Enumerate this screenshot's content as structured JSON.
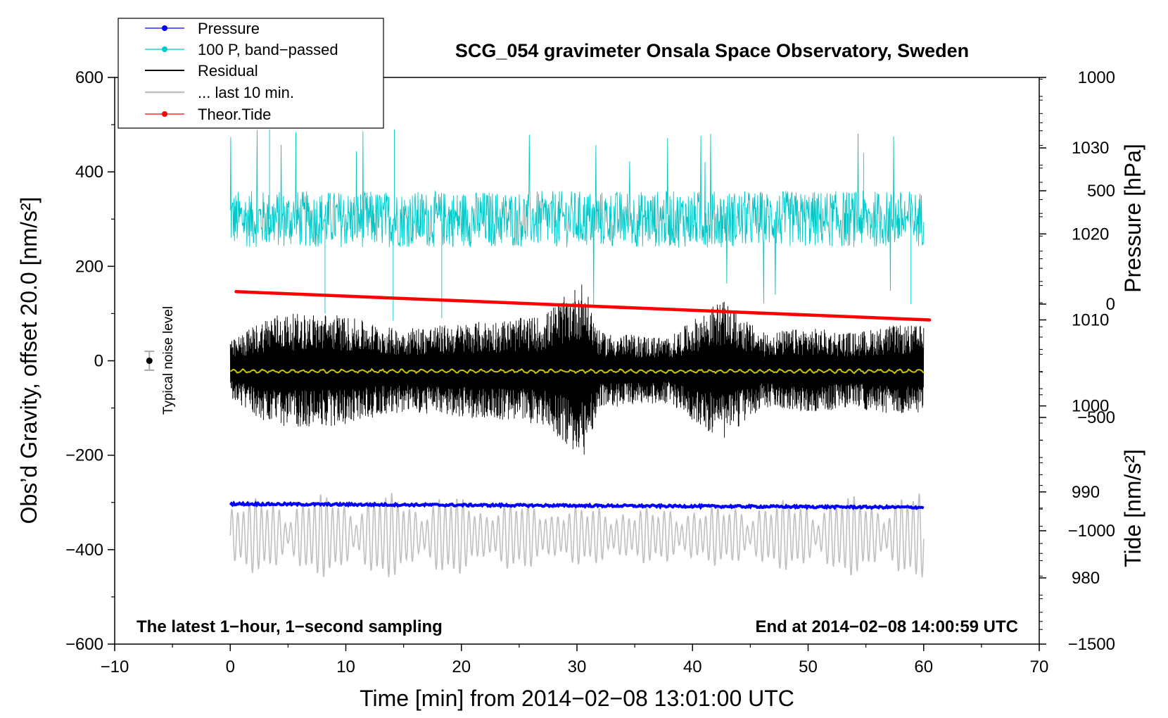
{
  "chart_data": {
    "type": "line",
    "title": "SCG_054 gravimeter Onsala Space Observatory, Sweden",
    "xlabel": "Time [min] from 2014−02−08 13:01:00 UTC",
    "ylabel_left": "Obs’d Gravity, offset 20.0 [nm/s²]",
    "ylabel_right_pressure": "Pressure [hPa]",
    "ylabel_right_tide": "Tide [nm/s²]",
    "xlim": [
      -10,
      70
    ],
    "ylim": [
      -600,
      600
    ],
    "x_ticks": [
      -10,
      0,
      10,
      20,
      30,
      40,
      50,
      60,
      70
    ],
    "x_tick_labels": [
      "−10",
      "0",
      "10",
      "20",
      "30",
      "40",
      "50",
      "60",
      "70"
    ],
    "y_ticks": [
      -600,
      -400,
      -200,
      0,
      200,
      400,
      600
    ],
    "y_tick_labels": [
      "−600",
      "−400",
      "−200",
      "0",
      "200",
      "400",
      "600"
    ],
    "pressure_axis": {
      "ticks": [
        980,
        990,
        1000,
        1010,
        1020,
        1030
      ],
      "tick_labels": [
        "980",
        "990",
        "1000",
        "1010",
        "1020",
        "1030"
      ],
      "range": [
        972.3,
        1038.2
      ]
    },
    "tide_axis": {
      "ticks": [
        -1500,
        -1000,
        -500,
        0,
        500,
        1000
      ],
      "tick_labels": [
        "−1500",
        "−1000",
        "−500",
        "0",
        "500",
        "1000"
      ],
      "range": [
        -1500,
        1000
      ]
    },
    "legend_position": "top-left",
    "legend": [
      {
        "label": "Pressure",
        "color": "#0000ff",
        "marker": "dot"
      },
      {
        "label": "100 P, band−passed",
        "color": "#00c8c8",
        "marker": "dot"
      },
      {
        "label": "Residual",
        "color": "#000000",
        "marker": "none"
      },
      {
        "label": "... last 10 min.",
        "color": "#c0c0c0",
        "marker": "none"
      },
      {
        "label": "Theor.Tide",
        "color": "#ff0000",
        "marker": "dot"
      }
    ],
    "annotations": {
      "left": "The latest 1−hour, 1−second sampling",
      "right": "End at 2014−02−08 14:00:59 UTC",
      "noise": "Typical noise level"
    },
    "noise_level": {
      "x": -7,
      "y": 0,
      "err": 20
    },
    "series": [
      {
        "name": "Pressure",
        "color": "#0000ff",
        "unit": "hPa",
        "x_start": 0,
        "x_end": 60,
        "y_start": 988.6,
        "y_end": 988.2,
        "note": "nearly constant, slight noise"
      },
      {
        "name": "100 P, band−passed",
        "color": "#00c8c8",
        "unit": "nm/s²",
        "x_start": 0,
        "x_end": 60,
        "mean": 300,
        "typical_amplitude": 60,
        "spikes_max": 490,
        "spikes_min": 85
      },
      {
        "name": "Residual",
        "color": "#000000",
        "unit": "nm/s²",
        "x_start": 0,
        "x_end": 60,
        "mean": -20,
        "envelope_points": [
          [
            0,
            60
          ],
          [
            3.5,
            120
          ],
          [
            9,
            120
          ],
          [
            14,
            90
          ],
          [
            18,
            95
          ],
          [
            27,
            115
          ],
          [
            30.5,
            190
          ],
          [
            32,
            80
          ],
          [
            38,
            70
          ],
          [
            42.5,
            150
          ],
          [
            46,
            80
          ],
          [
            50,
            90
          ],
          [
            54,
            80
          ],
          [
            57,
            95
          ],
          [
            60,
            95
          ]
        ]
      },
      {
        "name": "Residual smoothed",
        "color": "#c8c800",
        "unit": "nm/s²",
        "x_start": 0,
        "x_end": 60,
        "mean": -22
      },
      {
        "name": "... last 10 min.",
        "color": "#c0c0c0",
        "unit": "nm/s²",
        "x_start": 0,
        "x_end": 60,
        "mean": -370,
        "amplitude": 80
      },
      {
        "name": "Theor.Tide",
        "color": "#ff0000",
        "unit": "nm/s² (tide axis)",
        "x_start": 0.5,
        "x_end": 60.5,
        "y_start": 55,
        "y_end": -70
      }
    ]
  }
}
